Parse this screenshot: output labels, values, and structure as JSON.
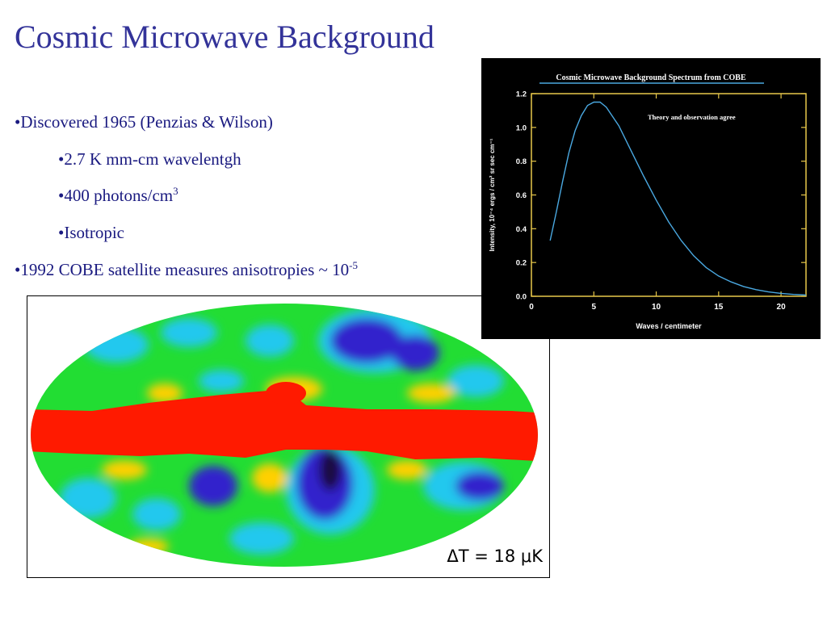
{
  "slide": {
    "title": "Cosmic Microwave Background",
    "bullets": [
      {
        "prefix": "•",
        "text": "Discovered 1965 (Penzias & Wilson)",
        "sup": ""
      },
      {
        "prefix": "•",
        "text": "2.7 K mm-cm wavelentgh",
        "sup": ""
      },
      {
        "prefix": "•",
        "text": "400 photons/cm",
        "sup": "3"
      },
      {
        "prefix": "•",
        "text": "Isotropic",
        "sup": ""
      },
      {
        "prefix": "•",
        "text": "1992 COBE satellite measures anisotropies ~ 10",
        "sup": "-5"
      }
    ]
  },
  "anisotropy_map": {
    "label": "ΔT = 18 μK",
    "colors": {
      "hot": "#ff1a00",
      "warm": "#ffd000",
      "mid": "#22dd33",
      "cool": "#22c8ee",
      "cold": "#3322cc",
      "coldest": "#1a0a40"
    }
  },
  "chart_data": {
    "type": "line",
    "title": "Cosmic Microwave Background Spectrum from COBE",
    "annotation": "Theory and observation agree",
    "xlabel": "Waves / centimeter",
    "ylabel": "Intensity, 10⁻⁴ ergs / cm² sr sec cm⁻¹",
    "xlim": [
      0,
      22
    ],
    "ylim": [
      0,
      1.2
    ],
    "x_ticks": [
      "0",
      "5",
      "10",
      "15",
      "20"
    ],
    "y_ticks": [
      "0.0",
      "0.2",
      "0.4",
      "0.6",
      "0.8",
      "1.0",
      "1.2"
    ],
    "series": [
      {
        "color": "#4aa8e0",
        "x": [
          1.5,
          2,
          2.5,
          3,
          3.5,
          4,
          4.5,
          5,
          5.5,
          6,
          7,
          8,
          9,
          10,
          11,
          12,
          13,
          14,
          15,
          16,
          17,
          18,
          19,
          20,
          21,
          22
        ],
        "y": [
          0.33,
          0.5,
          0.68,
          0.85,
          0.98,
          1.07,
          1.13,
          1.15,
          1.15,
          1.12,
          1.01,
          0.86,
          0.71,
          0.57,
          0.44,
          0.33,
          0.24,
          0.17,
          0.12,
          0.085,
          0.058,
          0.039,
          0.026,
          0.017,
          0.011,
          0.007
        ]
      }
    ],
    "colors": {
      "background": "#000000",
      "axes": "#e8c84a",
      "title": "#ffffff"
    }
  }
}
